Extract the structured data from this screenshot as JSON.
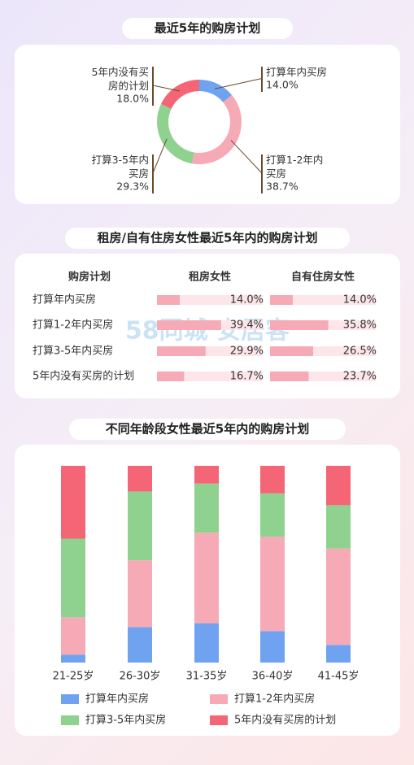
{
  "chart_data": [
    {
      "type": "pie",
      "title": "最近5年的购房计划",
      "donut": true,
      "categories": [
        "打算年内买房",
        "打算1-2年内买房",
        "打算3-5年内买房",
        "5年内没有买房的计划"
      ],
      "values": [
        14.0,
        38.7,
        29.3,
        18.0
      ],
      "value_labels": [
        "14.0%",
        "38.7%",
        "29.3%",
        "18.0%"
      ],
      "colors": [
        "#6fa3f0",
        "#f6aab6",
        "#8fd18f",
        "#f46575"
      ]
    },
    {
      "type": "table-bar",
      "title": "租房/自有住房女性最近5年内的购房计划",
      "header": "购房计划",
      "categories": [
        "打算年内买房",
        "打算1-2年内买房",
        "打算3-5年内买房",
        "5年内没有买房的计划"
      ],
      "xlim": [
        0,
        65
      ],
      "series": [
        {
          "name": "租房女性",
          "color": "#f6aab6",
          "values": [
            14.0,
            39.4,
            29.9,
            16.7
          ],
          "value_labels": [
            "14.0%",
            "39.4%",
            "29.9%",
            "16.7%"
          ]
        },
        {
          "name": "自有住房女性",
          "color": "#f6aab6",
          "values": [
            14.0,
            35.8,
            26.5,
            23.7
          ],
          "value_labels": [
            "14.0%",
            "35.8%",
            "26.5%",
            "23.7%"
          ]
        }
      ]
    },
    {
      "type": "stacked-bar",
      "title": "不同年龄段女性最近5年内的购房计划",
      "categories": [
        "21-25岁",
        "26-30岁",
        "31-35岁",
        "36-40岁",
        "41-45岁"
      ],
      "ylim": [
        0,
        100
      ],
      "series": [
        {
          "name": "打算年内买房",
          "color": "#6fa3f0",
          "values": [
            4,
            18,
            20,
            16,
            9
          ]
        },
        {
          "name": "打算1-2年内买房",
          "color": "#f6aab6",
          "values": [
            19,
            34,
            46,
            48,
            49
          ]
        },
        {
          "name": "打算3-5年内买房",
          "color": "#8fd18f",
          "values": [
            40,
            35,
            25,
            22,
            22
          ]
        },
        {
          "name": "5年内没有买房的计划",
          "color": "#f46575",
          "values": [
            37,
            13,
            9,
            14,
            20
          ]
        }
      ]
    }
  ],
  "watermark": "58同城 安居客"
}
